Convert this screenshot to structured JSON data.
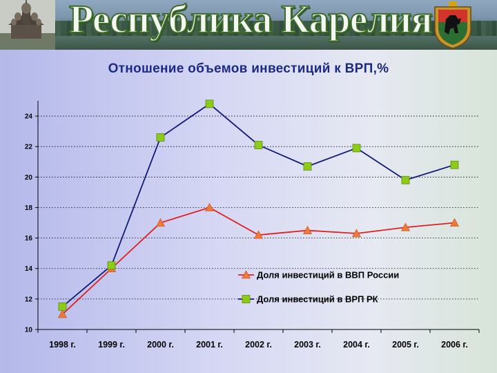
{
  "banner": {
    "title": "Республика Карелия",
    "left_image_icon": "wooden-church-icon",
    "right_image_icon": "karelia-coat-of-arms-icon"
  },
  "chart_data": {
    "type": "line",
    "title": "Отношение объемов инвестиций к ВРП,%",
    "categories": [
      "1998 г.",
      "1999 г.",
      "2000 г.",
      "2001 г.",
      "2002 г.",
      "2003 г.",
      "2004 г.",
      "2005 г.",
      "2006 г."
    ],
    "series": [
      {
        "name": "Доля инвестиций в ВВП России",
        "values": [
          11.0,
          14.0,
          17.0,
          18.0,
          16.2,
          16.5,
          16.3,
          16.7,
          17.0
        ],
        "color": "#e02020",
        "marker": "triangle",
        "marker_color": "#f07838"
      },
      {
        "name": "Доля инвестиций в ВРП РК",
        "values": [
          11.5,
          14.2,
          22.6,
          24.8,
          22.1,
          20.7,
          21.9,
          19.8,
          20.8
        ],
        "color": "#101a7a",
        "marker": "square",
        "marker_color": "#8ccc18"
      }
    ],
    "ylim": [
      10,
      25
    ],
    "yticks": [
      10,
      12,
      14,
      16,
      18,
      20,
      22,
      24
    ],
    "grid": "dotted horizontal",
    "legend_position": "lower-right"
  }
}
